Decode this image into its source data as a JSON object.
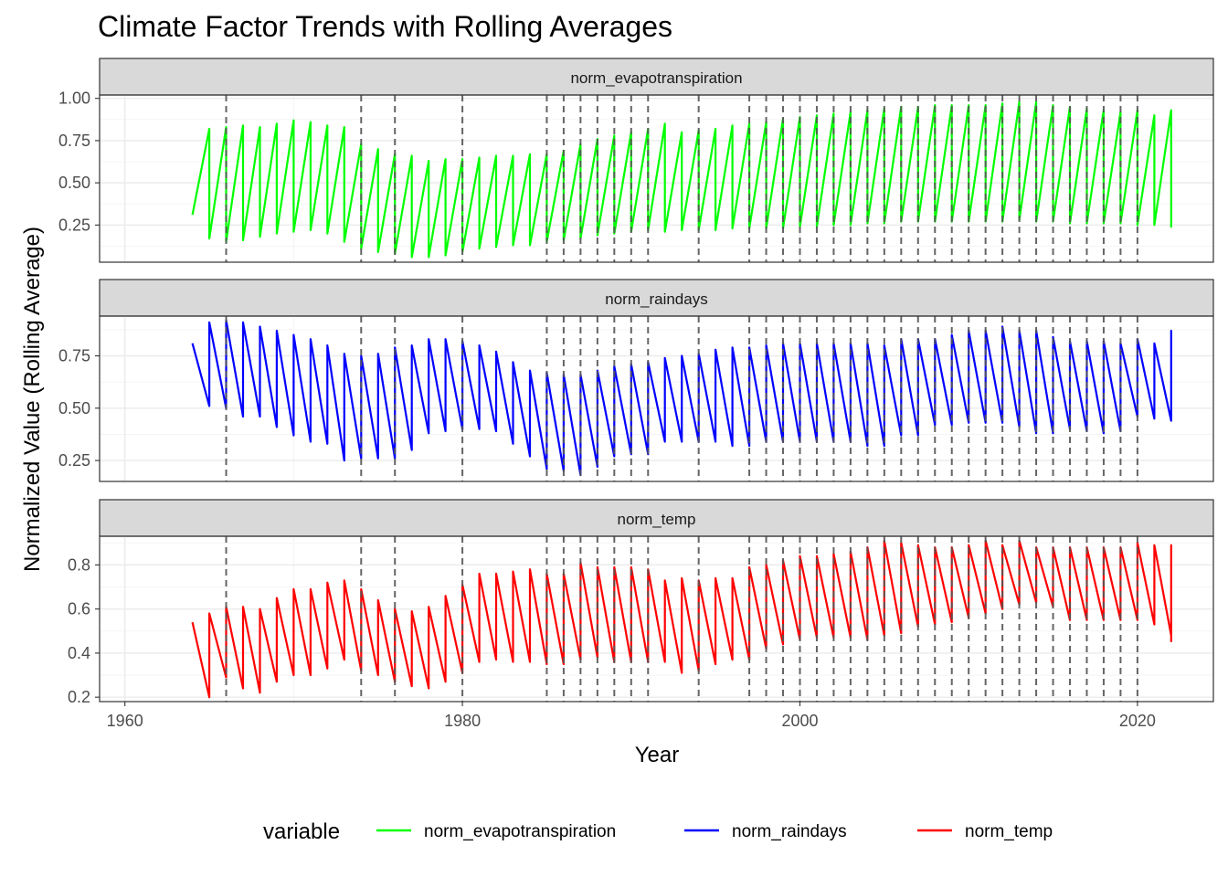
{
  "chart_data": {
    "type": "line",
    "title": "Climate Factor Trends with Rolling Averages",
    "xlabel": "Year",
    "ylabel": "Normalized Value (Rolling Average)",
    "xlim": [
      1958.5,
      2024.5
    ],
    "x_ticks": [
      1960,
      1980,
      2000,
      2020
    ],
    "grid": true,
    "legend": {
      "title": "variable",
      "position": "bottom",
      "entries": [
        "norm_evapotranspiration",
        "norm_raindays",
        "norm_temp"
      ]
    },
    "colors": {
      "norm_evapotranspiration": "#00ff00",
      "norm_raindays": "#0000ff",
      "norm_temp": "#ff0000",
      "vline": "#555555",
      "strip_fill": "#d9d9d9",
      "grid": "#ebebeb"
    },
    "vlines": [
      1966,
      1974,
      1976,
      1980,
      1985,
      1986,
      1987,
      1988,
      1989,
      1990,
      1991,
      1994,
      1997,
      1998,
      1999,
      2000,
      2001,
      2002,
      2003,
      2004,
      2005,
      2006,
      2007,
      2008,
      2009,
      2010,
      2011,
      2012,
      2013,
      2014,
      2015,
      2016,
      2017,
      2018,
      2019,
      2020
    ],
    "panels": [
      {
        "name": "norm_evapotranspiration",
        "ylim": [
          0.03,
          1.02
        ],
        "y_ticks": [
          0.25,
          0.5,
          0.75,
          1.0
        ],
        "y_tick_labels": [
          "0.25",
          "0.50",
          "0.75",
          "1.00"
        ],
        "years": [
          1964,
          1965,
          1966,
          1967,
          1968,
          1969,
          1970,
          1971,
          1972,
          1973,
          1974,
          1975,
          1976,
          1977,
          1978,
          1979,
          1980,
          1981,
          1982,
          1983,
          1984,
          1985,
          1986,
          1987,
          1988,
          1989,
          1990,
          1991,
          1992,
          1993,
          1994,
          1995,
          1996,
          1997,
          1998,
          1999,
          2000,
          2001,
          2002,
          2003,
          2004,
          2005,
          2006,
          2007,
          2008,
          2009,
          2010,
          2011,
          2012,
          2013,
          2014,
          2015,
          2016,
          2017,
          2018,
          2019,
          2020,
          2021,
          2022
        ],
        "start": [
          0.31,
          0.17,
          0.15,
          0.16,
          0.18,
          0.2,
          0.21,
          0.22,
          0.2,
          0.15,
          0.11,
          0.09,
          0.08,
          0.06,
          0.06,
          0.07,
          0.09,
          0.11,
          0.12,
          0.13,
          0.13,
          0.15,
          0.16,
          0.17,
          0.19,
          0.2,
          0.21,
          0.22,
          0.21,
          0.22,
          0.22,
          0.22,
          0.23,
          0.23,
          0.23,
          0.23,
          0.24,
          0.24,
          0.25,
          0.25,
          0.26,
          0.26,
          0.27,
          0.27,
          0.27,
          0.27,
          0.27,
          0.27,
          0.27,
          0.28,
          0.27,
          0.27,
          0.26,
          0.26,
          0.26,
          0.26,
          0.25,
          0.25,
          0.24
        ],
        "end": [
          0.82,
          0.83,
          0.84,
          0.83,
          0.85,
          0.87,
          0.86,
          0.84,
          0.83,
          0.73,
          0.7,
          0.67,
          0.66,
          0.63,
          0.64,
          0.64,
          0.65,
          0.66,
          0.66,
          0.67,
          0.67,
          0.69,
          0.73,
          0.76,
          0.78,
          0.8,
          0.82,
          0.85,
          0.8,
          0.81,
          0.82,
          0.84,
          0.85,
          0.86,
          0.88,
          0.89,
          0.9,
          0.91,
          0.92,
          0.93,
          0.94,
          0.95,
          0.95,
          0.96,
          0.96,
          0.96,
          0.96,
          0.97,
          0.98,
          0.98,
          0.96,
          0.95,
          0.94,
          0.93,
          0.92,
          0.93,
          0.9,
          0.93,
          0.91
        ]
      },
      {
        "name": "norm_raindays",
        "ylim": [
          0.15,
          0.94
        ],
        "y_ticks": [
          0.25,
          0.5,
          0.75
        ],
        "y_tick_labels": [
          "0.25",
          "0.50",
          "0.75"
        ],
        "years": [
          1964,
          1965,
          1966,
          1967,
          1968,
          1969,
          1970,
          1971,
          1972,
          1973,
          1974,
          1975,
          1976,
          1977,
          1978,
          1979,
          1980,
          1981,
          1982,
          1983,
          1984,
          1985,
          1986,
          1987,
          1988,
          1989,
          1990,
          1991,
          1992,
          1993,
          1994,
          1995,
          1996,
          1997,
          1998,
          1999,
          2000,
          2001,
          2002,
          2003,
          2004,
          2005,
          2006,
          2007,
          2008,
          2009,
          2010,
          2011,
          2012,
          2013,
          2014,
          2015,
          2016,
          2017,
          2018,
          2019,
          2020,
          2021,
          2022
        ],
        "start": [
          0.81,
          0.91,
          0.92,
          0.91,
          0.89,
          0.87,
          0.85,
          0.83,
          0.8,
          0.76,
          0.75,
          0.76,
          0.79,
          0.8,
          0.83,
          0.83,
          0.82,
          0.8,
          0.77,
          0.72,
          0.68,
          0.67,
          0.66,
          0.66,
          0.68,
          0.7,
          0.71,
          0.72,
          0.74,
          0.75,
          0.76,
          0.78,
          0.79,
          0.79,
          0.8,
          0.81,
          0.81,
          0.81,
          0.81,
          0.81,
          0.81,
          0.8,
          0.83,
          0.83,
          0.83,
          0.85,
          0.87,
          0.87,
          0.89,
          0.87,
          0.87,
          0.84,
          0.82,
          0.82,
          0.82,
          0.81,
          0.83,
          0.81,
          0.87
        ],
        "end": [
          0.51,
          0.5,
          0.46,
          0.46,
          0.41,
          0.37,
          0.34,
          0.33,
          0.25,
          0.26,
          0.26,
          0.26,
          0.3,
          0.38,
          0.39,
          0.4,
          0.4,
          0.39,
          0.33,
          0.27,
          0.21,
          0.2,
          0.18,
          0.22,
          0.27,
          0.28,
          0.28,
          0.34,
          0.34,
          0.34,
          0.34,
          0.32,
          0.32,
          0.34,
          0.34,
          0.34,
          0.34,
          0.34,
          0.34,
          0.32,
          0.32,
          0.37,
          0.37,
          0.42,
          0.42,
          0.43,
          0.43,
          0.43,
          0.41,
          0.38,
          0.38,
          0.4,
          0.39,
          0.38,
          0.39,
          0.46,
          0.45,
          0.44,
          0.44
        ]
      },
      {
        "name": "norm_temp",
        "ylim": [
          0.18,
          0.93
        ],
        "y_ticks": [
          0.2,
          0.4,
          0.6,
          0.8
        ],
        "y_tick_labels": [
          "0.2",
          "0.4",
          "0.6",
          "0.8"
        ],
        "years": [
          1964,
          1965,
          1966,
          1967,
          1968,
          1969,
          1970,
          1971,
          1972,
          1973,
          1974,
          1975,
          1976,
          1977,
          1978,
          1979,
          1980,
          1981,
          1982,
          1983,
          1984,
          1985,
          1986,
          1987,
          1988,
          1989,
          1990,
          1991,
          1992,
          1993,
          1994,
          1995,
          1996,
          1997,
          1998,
          1999,
          2000,
          2001,
          2002,
          2003,
          2004,
          2005,
          2006,
          2007,
          2008,
          2009,
          2010,
          2011,
          2012,
          2013,
          2014,
          2015,
          2016,
          2017,
          2018,
          2019,
          2020,
          2021,
          2022
        ],
        "start": [
          0.54,
          0.58,
          0.61,
          0.61,
          0.6,
          0.65,
          0.69,
          0.69,
          0.72,
          0.73,
          0.69,
          0.64,
          0.6,
          0.59,
          0.61,
          0.66,
          0.71,
          0.76,
          0.76,
          0.77,
          0.78,
          0.76,
          0.76,
          0.81,
          0.79,
          0.79,
          0.79,
          0.78,
          0.73,
          0.74,
          0.73,
          0.74,
          0.74,
          0.79,
          0.8,
          0.82,
          0.84,
          0.84,
          0.85,
          0.86,
          0.88,
          0.91,
          0.9,
          0.89,
          0.88,
          0.88,
          0.89,
          0.91,
          0.89,
          0.91,
          0.88,
          0.88,
          0.88,
          0.88,
          0.88,
          0.88,
          0.9,
          0.89,
          0.89
        ],
        "end": [
          0.2,
          0.29,
          0.24,
          0.22,
          0.27,
          0.3,
          0.3,
          0.33,
          0.37,
          0.32,
          0.3,
          0.27,
          0.25,
          0.24,
          0.27,
          0.31,
          0.36,
          0.37,
          0.36,
          0.36,
          0.35,
          0.35,
          0.37,
          0.38,
          0.36,
          0.36,
          0.36,
          0.36,
          0.31,
          0.32,
          0.35,
          0.37,
          0.37,
          0.42,
          0.44,
          0.46,
          0.47,
          0.47,
          0.47,
          0.46,
          0.48,
          0.49,
          0.52,
          0.53,
          0.54,
          0.56,
          0.58,
          0.6,
          0.62,
          0.63,
          0.61,
          0.55,
          0.55,
          0.55,
          0.55,
          0.55,
          0.53,
          0.48,
          0.45
        ]
      }
    ]
  }
}
